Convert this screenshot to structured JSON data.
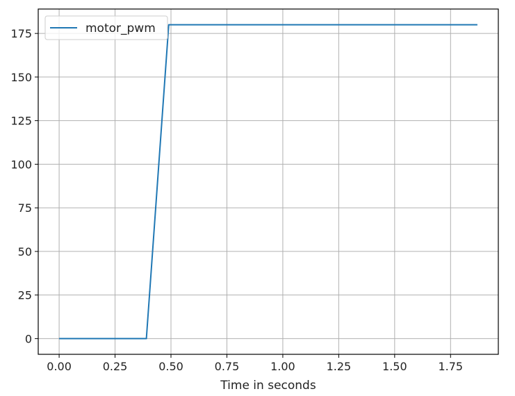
{
  "chart_data": {
    "type": "line",
    "xlabel": "Time in seconds",
    "ylabel": "",
    "xlim": [
      -0.0935,
      1.9635
    ],
    "ylim": [
      -9.0,
      189.0
    ],
    "xticks": [
      0.0,
      0.25,
      0.5,
      0.75,
      1.0,
      1.25,
      1.5,
      1.75
    ],
    "xtick_labels": [
      "0.00",
      "0.25",
      "0.50",
      "0.75",
      "1.00",
      "1.25",
      "1.50",
      "1.75"
    ],
    "yticks": [
      0,
      25,
      50,
      75,
      100,
      125,
      150,
      175
    ],
    "ytick_labels": [
      "0",
      "25",
      "50",
      "75",
      "100",
      "125",
      "150",
      "175"
    ],
    "grid": true,
    "legend": {
      "placement": "top-left"
    },
    "series": [
      {
        "name": "motor_pwm",
        "color": "#1f77b4",
        "x": [
          0.0,
          0.39,
          0.49,
          1.87
        ],
        "y": [
          0,
          0,
          180,
          180
        ]
      }
    ]
  }
}
